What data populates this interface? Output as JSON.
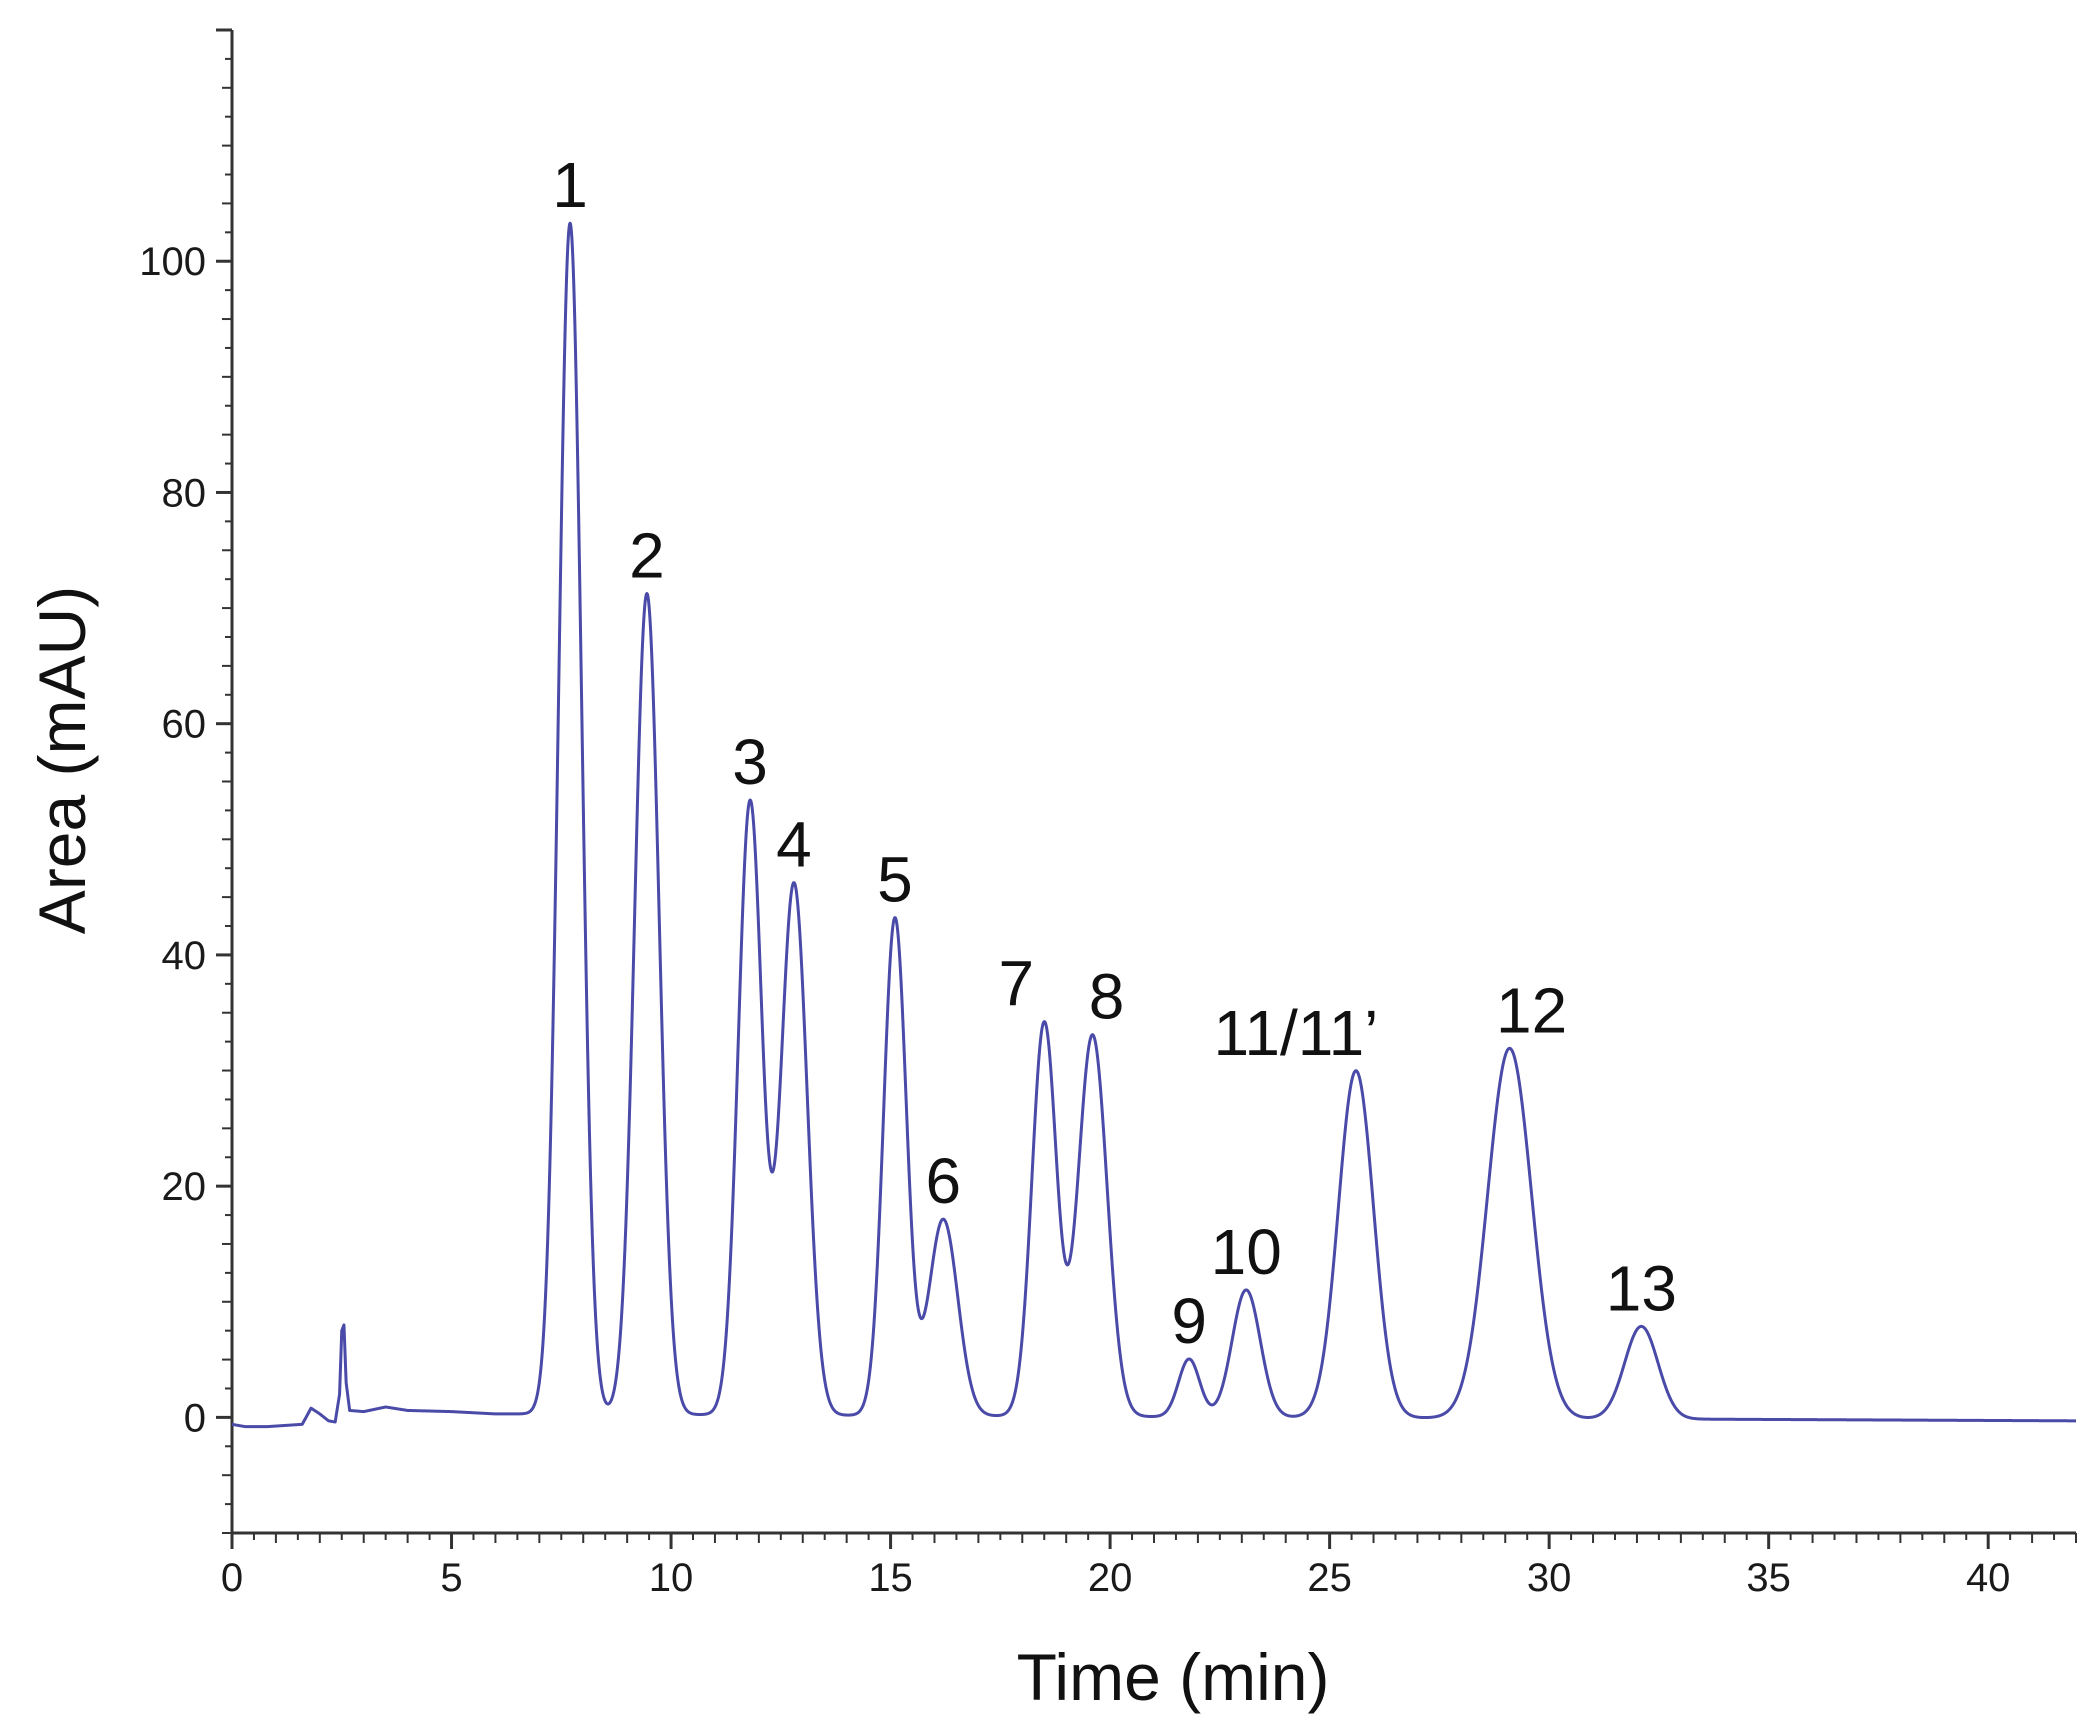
{
  "chart_data": {
    "type": "line",
    "title": "",
    "xlabel": "Time (min)",
    "ylabel": "Area (mAU)",
    "xlim": [
      0,
      42
    ],
    "ylim": [
      -10,
      120
    ],
    "x_ticks": [
      0,
      5,
      10,
      15,
      20,
      25,
      30,
      35,
      40
    ],
    "y_ticks": [
      0,
      20,
      40,
      60,
      80,
      100
    ],
    "grid": false,
    "legend": "none",
    "line_color": "#4a4aa8",
    "baseline": {
      "points": [
        [
          0,
          -0.6
        ],
        [
          0.3,
          -0.8
        ],
        [
          0.8,
          -0.8
        ],
        [
          1.2,
          -0.7
        ],
        [
          1.6,
          -0.6
        ],
        [
          1.8,
          0.8
        ],
        [
          2.0,
          0.3
        ],
        [
          2.2,
          -0.3
        ],
        [
          2.35,
          -0.4
        ],
        [
          2.45,
          2.0
        ],
        [
          2.5,
          7.5
        ],
        [
          2.55,
          8.0
        ],
        [
          2.6,
          3.0
        ],
        [
          2.68,
          0.6
        ],
        [
          3.0,
          0.5
        ],
        [
          3.5,
          0.9
        ],
        [
          4.0,
          0.6
        ],
        [
          5.0,
          0.5
        ],
        [
          6.0,
          0.3
        ],
        [
          7.0,
          0.3
        ]
      ],
      "end": [
        [
          42,
          -0.3
        ]
      ]
    },
    "peaks": [
      {
        "label": "1",
        "time": 7.7,
        "height": 103,
        "width": 0.26
      },
      {
        "label": "2",
        "time": 9.45,
        "height": 71,
        "width": 0.28
      },
      {
        "label": "3",
        "time": 11.8,
        "height": 53,
        "width": 0.27
      },
      {
        "label": "4",
        "time": 12.8,
        "height": 46,
        "width": 0.3
      },
      {
        "label": "5",
        "time": 15.1,
        "height": 43,
        "width": 0.26
      },
      {
        "label": "6",
        "time": 16.2,
        "height": 17,
        "width": 0.33
      },
      {
        "label": "7",
        "time": 18.5,
        "height": 34,
        "width": 0.28
      },
      {
        "label": "8",
        "time": 19.6,
        "height": 33,
        "width": 0.33
      },
      {
        "label": "9",
        "time": 21.8,
        "height": 5,
        "width": 0.24
      },
      {
        "label": "10",
        "time": 23.1,
        "height": 11,
        "width": 0.32
      },
      {
        "label": "11/11’",
        "time": 25.6,
        "height": 30,
        "width": 0.4
      },
      {
        "label": "12",
        "time": 29.1,
        "height": 32,
        "width": 0.5
      },
      {
        "label": "13",
        "time": 32.1,
        "height": 8,
        "width": 0.38
      }
    ]
  }
}
